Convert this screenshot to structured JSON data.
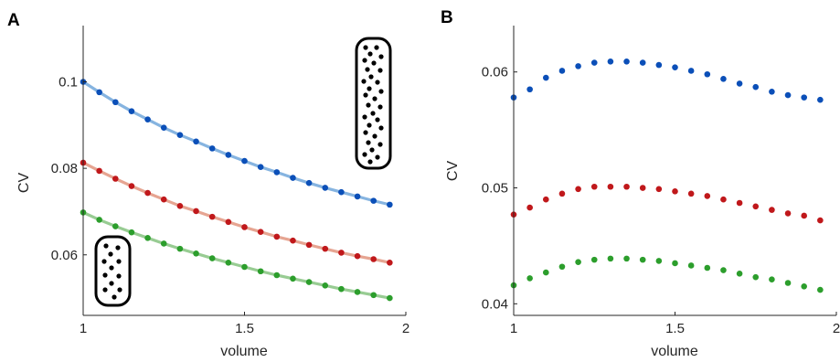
{
  "figure": {
    "panels": [
      {
        "letter": "A"
      },
      {
        "letter": "B"
      }
    ]
  },
  "chart_data": [
    {
      "type": "line",
      "panel": "A",
      "xlabel": "volume",
      "ylabel": "CV",
      "xlim": [
        1,
        2
      ],
      "ylim": [
        0.046,
        0.113
      ],
      "xticks": [
        1,
        1.5,
        2
      ],
      "xtick_labels": [
        "1",
        "1.5",
        "2"
      ],
      "yticks": [
        0.06,
        0.08,
        0.1
      ],
      "ytick_labels": [
        "0.06",
        "0.08",
        "0.1"
      ],
      "grid": false,
      "x": [
        1,
        1.05,
        1.1,
        1.15,
        1.2,
        1.25,
        1.3,
        1.35,
        1.4,
        1.45,
        1.5,
        1.55,
        1.6,
        1.65,
        1.7,
        1.75,
        1.8,
        1.85,
        1.9,
        1.95
      ],
      "series": [
        {
          "color": "#0b4fb8",
          "line_color": "#86b4e0",
          "values": [
            0.1,
            0.0976,
            0.0953,
            0.0932,
            0.0913,
            0.0894,
            0.0877,
            0.0862,
            0.0846,
            0.0831,
            0.0817,
            0.0803,
            0.0791,
            0.0778,
            0.0766,
            0.0755,
            0.0745,
            0.0735,
            0.0725,
            0.0716
          ]
        },
        {
          "color": "#c0181b",
          "line_color": "#e6a592",
          "values": [
            0.0813,
            0.0794,
            0.0776,
            0.0759,
            0.0743,
            0.0728,
            0.0713,
            0.0701,
            0.0688,
            0.0676,
            0.0664,
            0.0653,
            0.0642,
            0.0633,
            0.0623,
            0.0614,
            0.0605,
            0.0597,
            0.059,
            0.0582
          ]
        },
        {
          "color": "#2c9e2c",
          "line_color": "#98cc93",
          "values": [
            0.0698,
            0.0681,
            0.0666,
            0.0652,
            0.0639,
            0.0626,
            0.0614,
            0.0603,
            0.0592,
            0.0582,
            0.0572,
            0.0562,
            0.0553,
            0.0545,
            0.0537,
            0.0529,
            0.0521,
            0.0514,
            0.0507,
            0.05
          ]
        }
      ]
    },
    {
      "type": "scatter",
      "panel": "B",
      "xlabel": "volume",
      "ylabel": "CV",
      "xlim": [
        1,
        2
      ],
      "ylim": [
        0.039,
        0.064
      ],
      "xticks": [
        1,
        1.5,
        2
      ],
      "xtick_labels": [
        "1",
        "1.5",
        "2"
      ],
      "yticks": [
        0.04,
        0.05,
        0.06
      ],
      "ytick_labels": [
        "0.04",
        "0.05",
        "0.06"
      ],
      "grid": false,
      "x": [
        1,
        1.05,
        1.1,
        1.15,
        1.2,
        1.25,
        1.3,
        1.35,
        1.4,
        1.45,
        1.5,
        1.55,
        1.6,
        1.65,
        1.7,
        1.75,
        1.8,
        1.85,
        1.9,
        1.95
      ],
      "series": [
        {
          "color": "#0b4fb8",
          "values": [
            0.0578,
            0.0585,
            0.0595,
            0.0601,
            0.0605,
            0.0608,
            0.0609,
            0.0609,
            0.0608,
            0.0606,
            0.0604,
            0.0601,
            0.0598,
            0.0594,
            0.059,
            0.0587,
            0.0583,
            0.058,
            0.0578,
            0.0576
          ]
        },
        {
          "color": "#c0181b",
          "values": [
            0.0477,
            0.0483,
            0.049,
            0.0495,
            0.0499,
            0.0501,
            0.0501,
            0.0501,
            0.05,
            0.0499,
            0.0497,
            0.0495,
            0.0493,
            0.049,
            0.0487,
            0.0484,
            0.0481,
            0.0478,
            0.0476,
            0.0472
          ]
        },
        {
          "color": "#2c9e2c",
          "values": [
            0.0416,
            0.0422,
            0.0427,
            0.0432,
            0.0436,
            0.0438,
            0.0439,
            0.0439,
            0.0438,
            0.0437,
            0.0435,
            0.0433,
            0.0431,
            0.0429,
            0.0426,
            0.0423,
            0.0421,
            0.0418,
            0.0415,
            0.0412
          ]
        }
      ]
    }
  ]
}
